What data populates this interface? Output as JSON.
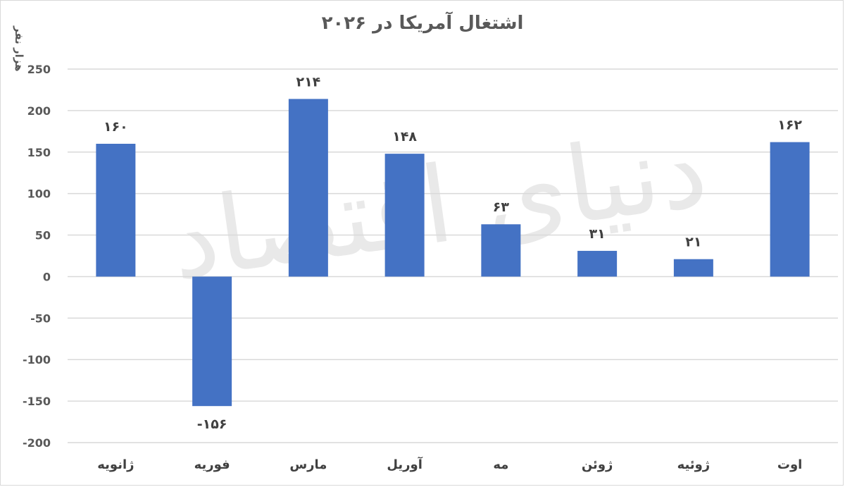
{
  "chart_data": {
    "type": "bar",
    "title": "اشتغال آمریکا در ۲۰۲۶",
    "ylabel": "هزار نفر",
    "categories": [
      "ژانویه",
      "فوریه",
      "مارس",
      "آوریل",
      "مه",
      "ژوئن",
      "ژوئیه",
      "اوت"
    ],
    "values": [
      160,
      -156,
      214,
      148,
      63,
      31,
      21,
      162
    ],
    "value_labels": [
      "۱۶۰",
      "-۱۵۶",
      "۲۱۴",
      "۱۴۸",
      "۶۳",
      "۳۱",
      "۲۱",
      "۱۶۲"
    ],
    "ylim": [
      -200,
      250
    ],
    "yticks": [
      250,
      200,
      150,
      100,
      50,
      0,
      -50,
      -100,
      -150,
      -200
    ],
    "ytick_labels": [
      "250",
      "200",
      "150",
      "100",
      "50",
      "0",
      "-50",
      "-100",
      "-150",
      "-200"
    ],
    "grid": true,
    "legend": "none",
    "bar_color": "#4472C4",
    "gridline_color": "#d9d9d9"
  },
  "watermark_text": "دنیای اقتصاد"
}
